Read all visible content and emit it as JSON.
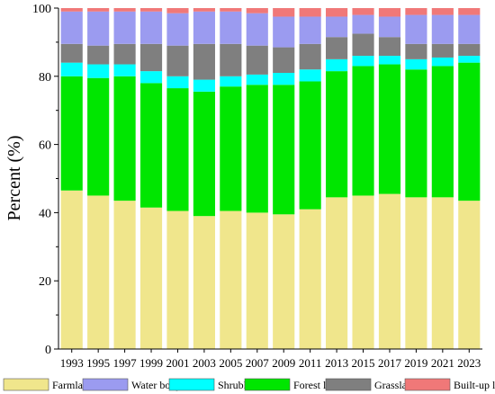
{
  "chart_data": {
    "type": "bar",
    "stacked": true,
    "ylabel": "Percent (%)",
    "xlabel": "",
    "ylim": [
      0,
      100
    ],
    "yticks": [
      0,
      20,
      40,
      60,
      80,
      100
    ],
    "grid": false,
    "legend_position": "bottom",
    "categories": [
      "1993",
      "1995",
      "1997",
      "1999",
      "2001",
      "2003",
      "2005",
      "2007",
      "2009",
      "2011",
      "2013",
      "2015",
      "2017",
      "2019",
      "2021",
      "2023"
    ],
    "series": [
      {
        "name": "Farmland",
        "color": "#f0e68c",
        "values": [
          46.5,
          45.0,
          43.5,
          41.5,
          40.5,
          39.0,
          40.5,
          40.0,
          39.5,
          41.0,
          44.5,
          45.0,
          45.5,
          44.5,
          44.5,
          43.5
        ]
      },
      {
        "name": "Forest land",
        "color": "#00e600",
        "values": [
          33.5,
          34.5,
          36.5,
          36.5,
          36.0,
          36.5,
          36.5,
          37.5,
          38.0,
          37.5,
          37.0,
          38.0,
          38.0,
          37.5,
          38.5,
          40.5
        ]
      },
      {
        "name": "Shrubland",
        "color": "#00ffff",
        "values": [
          4.0,
          4.0,
          3.5,
          3.5,
          3.5,
          3.5,
          3.0,
          3.0,
          3.5,
          3.5,
          3.5,
          3.0,
          2.5,
          3.0,
          2.5,
          2.0
        ]
      },
      {
        "name": "Grassland",
        "color": "#7f7f7f",
        "values": [
          5.5,
          5.5,
          6.0,
          8.0,
          9.0,
          10.5,
          9.5,
          8.5,
          7.5,
          7.5,
          6.5,
          6.5,
          5.5,
          4.5,
          4.0,
          3.5
        ]
      },
      {
        "name": "Water body",
        "color": "#9b9bf0",
        "values": [
          9.5,
          10.0,
          9.5,
          9.5,
          9.5,
          9.5,
          9.5,
          9.5,
          9.0,
          8.0,
          6.0,
          5.5,
          6.0,
          8.5,
          8.5,
          8.5
        ]
      },
      {
        "name": "Built-up land",
        "color": "#f07878",
        "values": [
          1.0,
          1.0,
          1.0,
          1.0,
          1.5,
          1.0,
          1.0,
          1.5,
          2.5,
          2.5,
          2.5,
          2.0,
          2.5,
          2.0,
          2.0,
          2.0
        ]
      }
    ],
    "legend_order": [
      "Farmland",
      "Water body",
      "Shrubland",
      "Forest land",
      "Grassland",
      "Built-up land"
    ]
  }
}
